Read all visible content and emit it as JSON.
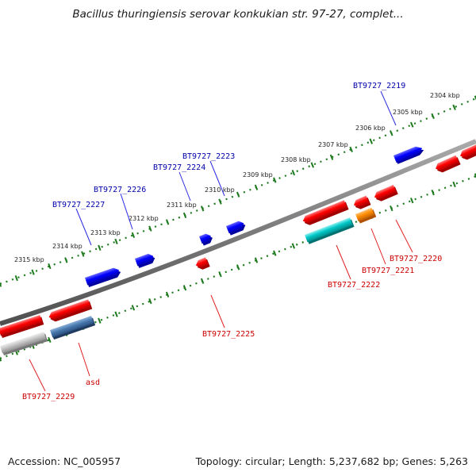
{
  "title": "Bacillus thuringiensis serovar konkukian str. 97-27, complet...",
  "footer": {
    "accession": "Accession: NC_005957",
    "info": "Topology: circular; Length: 5,237,682 bp; Genes: 5,263"
  },
  "colors": {
    "backbone": "#7a7a7a",
    "ticks": "#1e7a1e",
    "forward_gene": "#0000ff",
    "reverse_gene": "#ff0000",
    "forward_label": "#0000aa",
    "reverse_label": "#cc0000",
    "cyan_gene": "#00cccc",
    "orange_gene": "#ff8c00",
    "steel_gene": "#4a7ab0",
    "gray_gene": "#bbbbbb"
  },
  "kbp_labels": [
    "2304 kbp",
    "2305 kbp",
    "2306 kbp",
    "2307 kbp",
    "2308 kbp",
    "2309 kbp",
    "2310 kbp",
    "2311 kbp",
    "2312 kbp",
    "2313 kbp",
    "2314 kbp",
    "2315 kbp"
  ],
  "gene_labels": {
    "forward": [
      "BT9727_2219",
      "BT9727_2223",
      "BT9727_2224",
      "BT9727_2226",
      "BT9727_2227"
    ],
    "reverse": [
      "BT9727_2220",
      "BT9727_2221",
      "BT9727_2222",
      "BT9727_2225",
      "BT9727_2229",
      "asd"
    ]
  }
}
